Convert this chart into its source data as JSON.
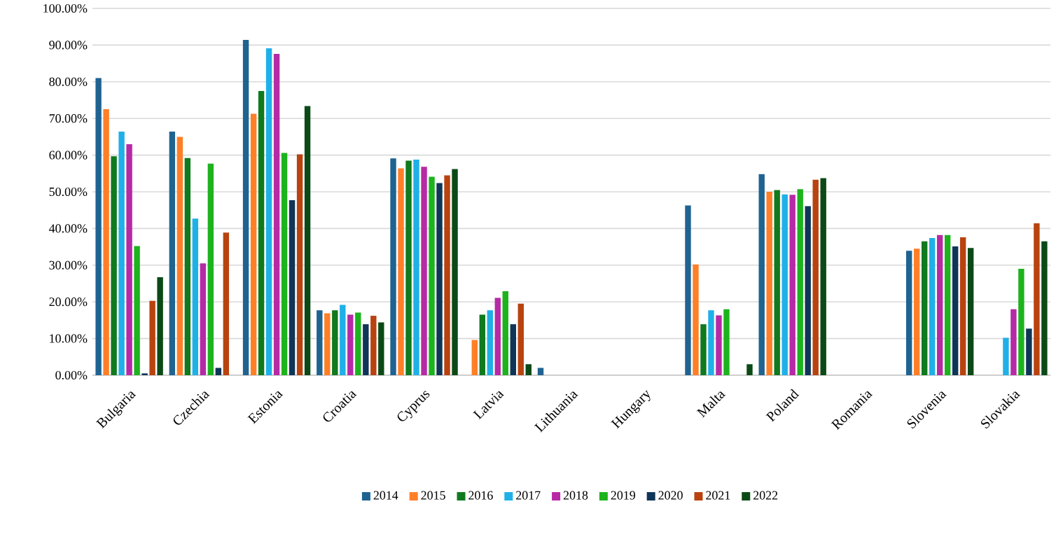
{
  "chart_data": {
    "type": "bar",
    "categories": [
      "Bulgaria",
      "Czechia",
      "Estonia",
      "Croatia",
      "Cyprus",
      "Latvia",
      "Lithuania",
      "Hungary",
      "Malta",
      "Poland",
      "Romania",
      "Slovenia",
      "Slovakia"
    ],
    "series": [
      {
        "name": "2014",
        "color": "#1f6391",
        "values": [
          81.0,
          66.4,
          91.4,
          17.7,
          59.1,
          null,
          2,
          null,
          46.3,
          54.8,
          null,
          33.9,
          null
        ]
      },
      {
        "name": "2015",
        "color": "#ff7f27",
        "values": [
          72.5,
          65.0,
          71.3,
          16.9,
          56.4,
          9.6,
          null,
          null,
          30.2,
          50.0,
          null,
          34.5,
          null
        ]
      },
      {
        "name": "2016",
        "color": "#0f7a1e",
        "values": [
          59.7,
          59.2,
          77.5,
          17.7,
          58.5,
          16.5,
          null,
          null,
          13.9,
          50.5,
          null,
          36.5,
          null
        ]
      },
      {
        "name": "2017",
        "color": "#1fb0e8",
        "values": [
          66.4,
          42.7,
          89.1,
          19.2,
          58.8,
          17.7,
          null,
          null,
          17.7,
          49.3,
          null,
          37.4,
          10.2
        ]
      },
      {
        "name": "2018",
        "color": "#b62aa6",
        "values": [
          63.0,
          30.5,
          87.6,
          16.5,
          56.8,
          21.1,
          null,
          null,
          16.3,
          49.2,
          null,
          38.2,
          18.0
        ]
      },
      {
        "name": "2019",
        "color": "#1db31d",
        "values": [
          35.2,
          57.7,
          60.6,
          17.1,
          54.1,
          22.9,
          null,
          null,
          18.0,
          50.7,
          null,
          38.2,
          29.0
        ]
      },
      {
        "name": "2020",
        "color": "#0f3557",
        "values": [
          0.5,
          2,
          47.7,
          13.9,
          52.4,
          13.9,
          null,
          null,
          null,
          46.1,
          null,
          35.1,
          12.7
        ]
      },
      {
        "name": "2021",
        "color": "#b8430f",
        "values": [
          20.3,
          38.9,
          60.2,
          16.2,
          54.5,
          19.5,
          null,
          null,
          null,
          53.3,
          null,
          37.6,
          41.4
        ]
      },
      {
        "name": "2022",
        "color": "#0b4a17",
        "values": [
          26.7,
          null,
          73.4,
          14.4,
          56.2,
          3,
          null,
          null,
          3,
          53.7,
          null,
          34.7,
          36.5
        ]
      }
    ],
    "ylim": [
      0,
      100
    ],
    "yticks": [
      {
        "value": 0,
        "label": "0.00%"
      },
      {
        "value": 10,
        "label": "10.00%"
      },
      {
        "value": 20,
        "label": "20.00%"
      },
      {
        "value": 30,
        "label": "30.00%"
      },
      {
        "value": 40,
        "label": "40.00%"
      },
      {
        "value": 50,
        "label": "50.00%"
      },
      {
        "value": 60,
        "label": "60.00%"
      },
      {
        "value": 70,
        "label": "70.00%"
      },
      {
        "value": 80,
        "label": "80.00%"
      },
      {
        "value": 90,
        "label": "90.00%"
      },
      {
        "value": 100,
        "label": "100.00%"
      }
    ],
    "grid": "y",
    "legend": "bottom"
  }
}
